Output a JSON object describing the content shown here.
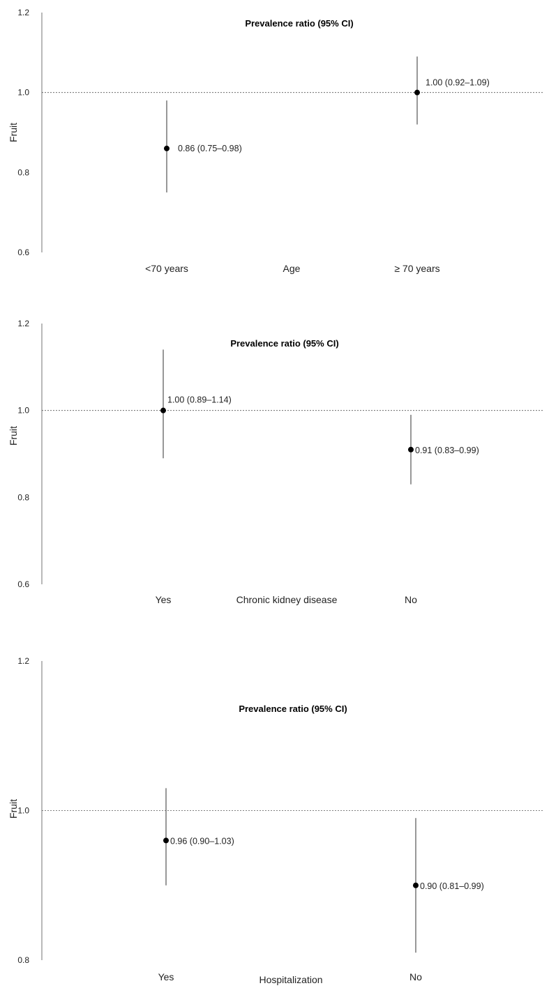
{
  "chart_data": [
    {
      "type": "scatter",
      "title": "Prevalence ratio (95% CI)",
      "ylabel": "Fruit",
      "xlabel": "Age",
      "categories": [
        "<70 years",
        "≥ 70 years"
      ],
      "ylim": [
        0.6,
        1.2
      ],
      "yticks": [
        "0.6",
        "0.8",
        "1.0",
        "1.2"
      ],
      "reference_line": 1.0,
      "points": [
        {
          "category": "<70 years",
          "value": 0.86,
          "lower": 0.75,
          "upper": 0.98,
          "label": "0.86 (0.75–0.98)"
        },
        {
          "category": "≥ 70 years",
          "value": 1.0,
          "lower": 0.92,
          "upper": 1.09,
          "label": "1.00 (0.92–1.09)"
        }
      ]
    },
    {
      "type": "scatter",
      "title": "Prevalence ratio (95% CI)",
      "ylabel": "Fruit",
      "xlabel": "Chronic kidney disease",
      "categories": [
        "Yes",
        "No"
      ],
      "ylim": [
        0.6,
        1.2
      ],
      "yticks": [
        "0.6",
        "0.8",
        "1.0",
        "1.2"
      ],
      "reference_line": 1.0,
      "points": [
        {
          "category": "Yes",
          "value": 1.0,
          "lower": 0.89,
          "upper": 1.14,
          "label": "1.00 (0.89–1.14)"
        },
        {
          "category": "No",
          "value": 0.91,
          "lower": 0.83,
          "upper": 0.99,
          "label": "0.91 (0.83–0.99)"
        }
      ]
    },
    {
      "type": "scatter",
      "title": "Prevalence ratio (95% CI)",
      "ylabel": "Fruit",
      "xlabel": "Hospitalization",
      "categories": [
        "Yes",
        "No"
      ],
      "ylim": [
        0.8,
        1.2
      ],
      "yticks": [
        "0.8",
        "1.0",
        "1.2"
      ],
      "reference_line": 1.0,
      "points": [
        {
          "category": "Yes",
          "value": 0.96,
          "lower": 0.9,
          "upper": 1.03,
          "label": "0.96 (0.90–1.03)"
        },
        {
          "category": "No",
          "value": 0.9,
          "lower": 0.81,
          "upper": 0.99,
          "label": "0.90 (0.81–0.99)"
        }
      ]
    }
  ]
}
